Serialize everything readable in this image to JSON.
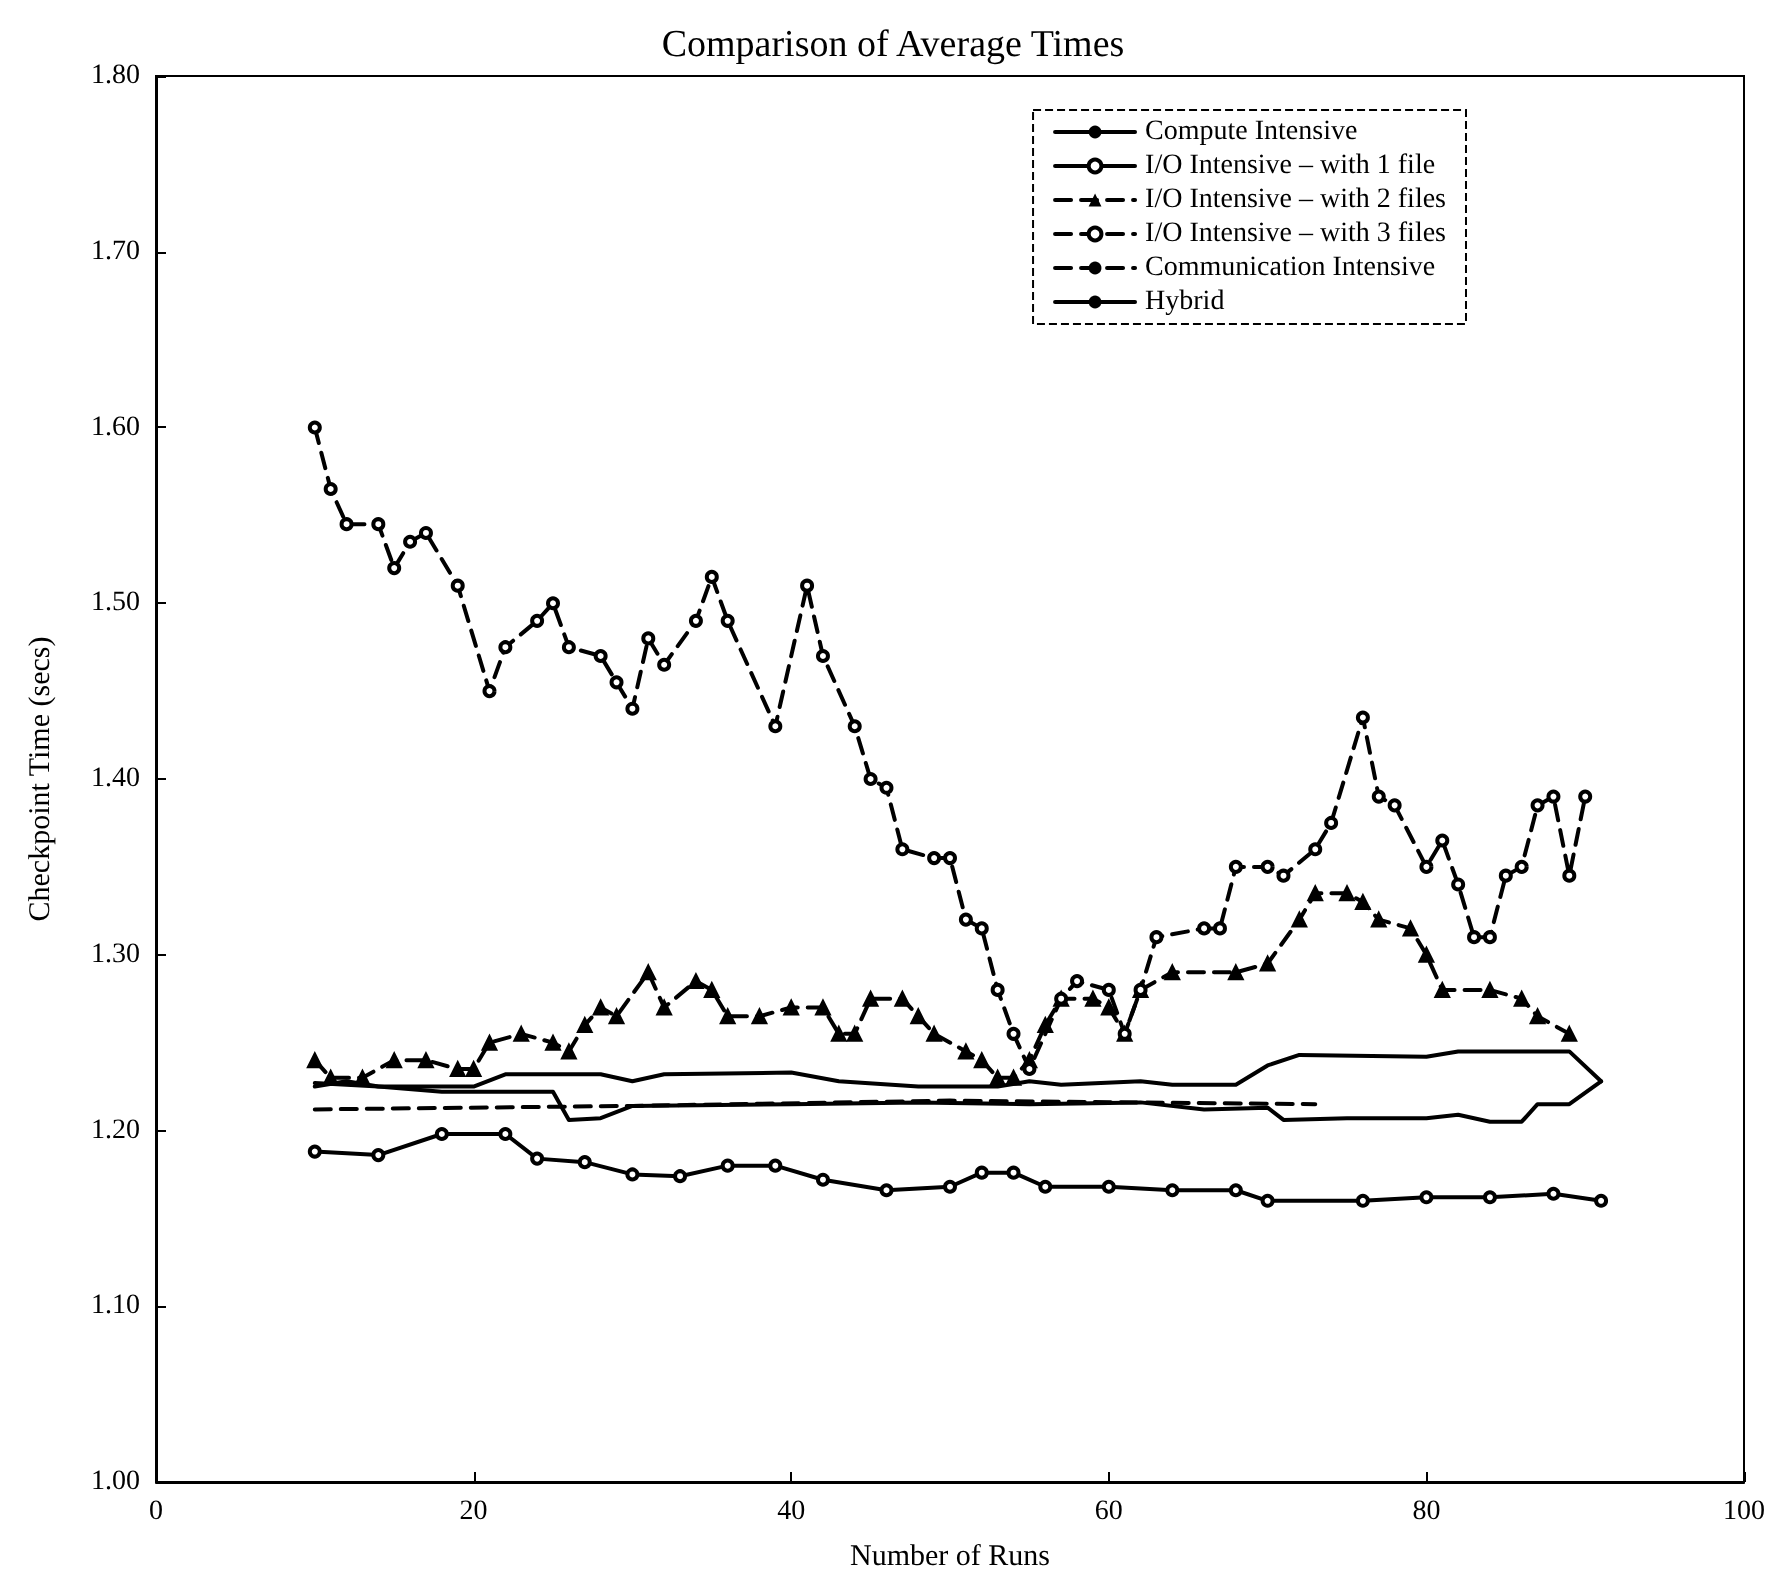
{
  "chart_data": {
    "type": "line",
    "title": "Comparison of Average Times",
    "xlabel": "Number of Runs",
    "ylabel": "Checkpoint Time (secs)",
    "xlim": [
      0,
      100
    ],
    "xticks": [
      0,
      20,
      40,
      60,
      80,
      100
    ],
    "ylim": [
      1.0,
      1.8
    ],
    "yticks": [
      {
        "value": 1.0,
        "label": "1.00"
      },
      {
        "value": 1.1,
        "label": "1.10"
      },
      {
        "value": 1.2,
        "label": "1.20"
      },
      {
        "value": 1.3,
        "label": "1.30"
      },
      {
        "value": 1.4,
        "label": "1.40"
      },
      {
        "value": 1.5,
        "label": "1.50"
      },
      {
        "value": 1.6,
        "label": "1.60"
      },
      {
        "value": 1.7,
        "label": "1.70"
      },
      {
        "value": 1.8,
        "label": "1.80"
      }
    ],
    "grid": false,
    "legend": "top right",
    "series": [
      {
        "name": "Compute Intensive",
        "color": "#000000",
        "marker": "none",
        "line_style": "solid",
        "x": [
          10,
          12,
          14,
          20,
          22,
          28,
          30,
          32,
          40,
          43,
          48,
          53,
          55,
          57,
          62,
          64,
          68,
          70,
          72,
          80,
          82,
          89,
          91
        ],
        "values": [
          1.225,
          1.228,
          1.225,
          1.225,
          1.232,
          1.232,
          1.228,
          1.232,
          1.233,
          1.228,
          1.225,
          1.225,
          1.228,
          1.226,
          1.228,
          1.226,
          1.226,
          1.237,
          1.243,
          1.242,
          1.245,
          1.245,
          1.228
        ]
      },
      {
        "name": "I/O Intensive – with 1 file",
        "color": "#000000",
        "marker": "circle",
        "line_style": "solid",
        "x": [
          10,
          14,
          18,
          22,
          24,
          27,
          30,
          33,
          36,
          39,
          42,
          46,
          50,
          52,
          54,
          56,
          60,
          64,
          68,
          70,
          76,
          80,
          84,
          88,
          91
        ],
        "values": [
          1.188,
          1.186,
          1.198,
          1.198,
          1.184,
          1.182,
          1.175,
          1.174,
          1.18,
          1.18,
          1.172,
          1.166,
          1.168,
          1.176,
          1.176,
          1.168,
          1.168,
          1.166,
          1.166,
          1.16,
          1.16,
          1.162,
          1.162,
          1.164,
          1.16
        ]
      },
      {
        "name": "I/O Intensive – with 2 files",
        "color": "#000000",
        "marker": "triangle",
        "line_style": "dashed",
        "x": [
          10,
          11,
          13,
          15,
          17,
          19,
          20,
          21,
          23,
          25,
          26,
          27,
          28,
          29,
          31,
          32,
          34,
          35,
          36,
          38,
          40,
          42,
          43,
          44,
          45,
          47,
          48,
          49,
          51,
          52,
          53,
          54,
          55,
          56,
          57,
          59,
          60,
          61,
          62,
          64,
          68,
          70,
          72,
          73,
          75,
          76,
          77,
          79,
          80,
          81,
          84,
          86,
          87,
          89
        ],
        "values": [
          1.24,
          1.23,
          1.23,
          1.24,
          1.24,
          1.235,
          1.235,
          1.25,
          1.255,
          1.25,
          1.245,
          1.26,
          1.27,
          1.265,
          1.29,
          1.27,
          1.285,
          1.28,
          1.265,
          1.265,
          1.27,
          1.27,
          1.255,
          1.255,
          1.275,
          1.275,
          1.265,
          1.255,
          1.245,
          1.24,
          1.23,
          1.23,
          1.24,
          1.26,
          1.275,
          1.275,
          1.27,
          1.255,
          1.28,
          1.29,
          1.29,
          1.295,
          1.32,
          1.335,
          1.335,
          1.33,
          1.32,
          1.315,
          1.3,
          1.28,
          1.28,
          1.275,
          1.265,
          1.255
        ]
      },
      {
        "name": "I/O Intensive – with 3 files",
        "color": "#000000",
        "marker": "circle",
        "line_style": "dashed",
        "x": [
          10,
          11,
          12,
          14,
          15,
          16,
          17,
          19,
          21,
          22,
          24,
          25,
          26,
          28,
          29,
          30,
          31,
          32,
          34,
          35,
          36,
          39,
          41,
          42,
          44,
          45,
          46,
          47,
          49,
          50,
          51,
          52,
          53,
          54,
          55,
          57,
          58,
          60,
          61,
          62,
          63,
          66,
          67,
          68,
          70,
          71,
          73,
          74,
          76,
          77,
          78,
          80,
          81,
          82,
          83,
          84,
          85,
          86,
          87,
          88,
          89,
          90
        ],
        "values": [
          1.6,
          1.565,
          1.545,
          1.545,
          1.52,
          1.535,
          1.54,
          1.51,
          1.45,
          1.475,
          1.49,
          1.5,
          1.475,
          1.47,
          1.455,
          1.44,
          1.48,
          1.465,
          1.49,
          1.515,
          1.49,
          1.43,
          1.51,
          1.47,
          1.43,
          1.4,
          1.395,
          1.36,
          1.355,
          1.355,
          1.32,
          1.315,
          1.28,
          1.255,
          1.235,
          1.275,
          1.285,
          1.28,
          1.255,
          1.28,
          1.31,
          1.315,
          1.315,
          1.35,
          1.35,
          1.345,
          1.36,
          1.375,
          1.435,
          1.39,
          1.385,
          1.35,
          1.365,
          1.34,
          1.31,
          1.31,
          1.345,
          1.35,
          1.385,
          1.39,
          1.345,
          1.39
        ]
      },
      {
        "name": "Communication Intensive",
        "color": "#000000",
        "marker": "none",
        "line_style": "dashed",
        "x": [
          10,
          30,
          50,
          73
        ],
        "values": [
          1.212,
          1.214,
          1.217,
          1.215
        ]
      },
      {
        "name": "Hybrid",
        "color": "#000000",
        "marker": "none",
        "line_style": "solid",
        "x": [
          10,
          14,
          18,
          25,
          26,
          28,
          30,
          40,
          48,
          55,
          62,
          66,
          70,
          71,
          75,
          80,
          82,
          84,
          86,
          87,
          89,
          91
        ],
        "values": [
          1.227,
          1.225,
          1.222,
          1.222,
          1.206,
          1.207,
          1.214,
          1.215,
          1.216,
          1.215,
          1.216,
          1.212,
          1.213,
          1.206,
          1.207,
          1.207,
          1.209,
          1.205,
          1.205,
          1.215,
          1.215,
          1.228
        ]
      }
    ]
  }
}
